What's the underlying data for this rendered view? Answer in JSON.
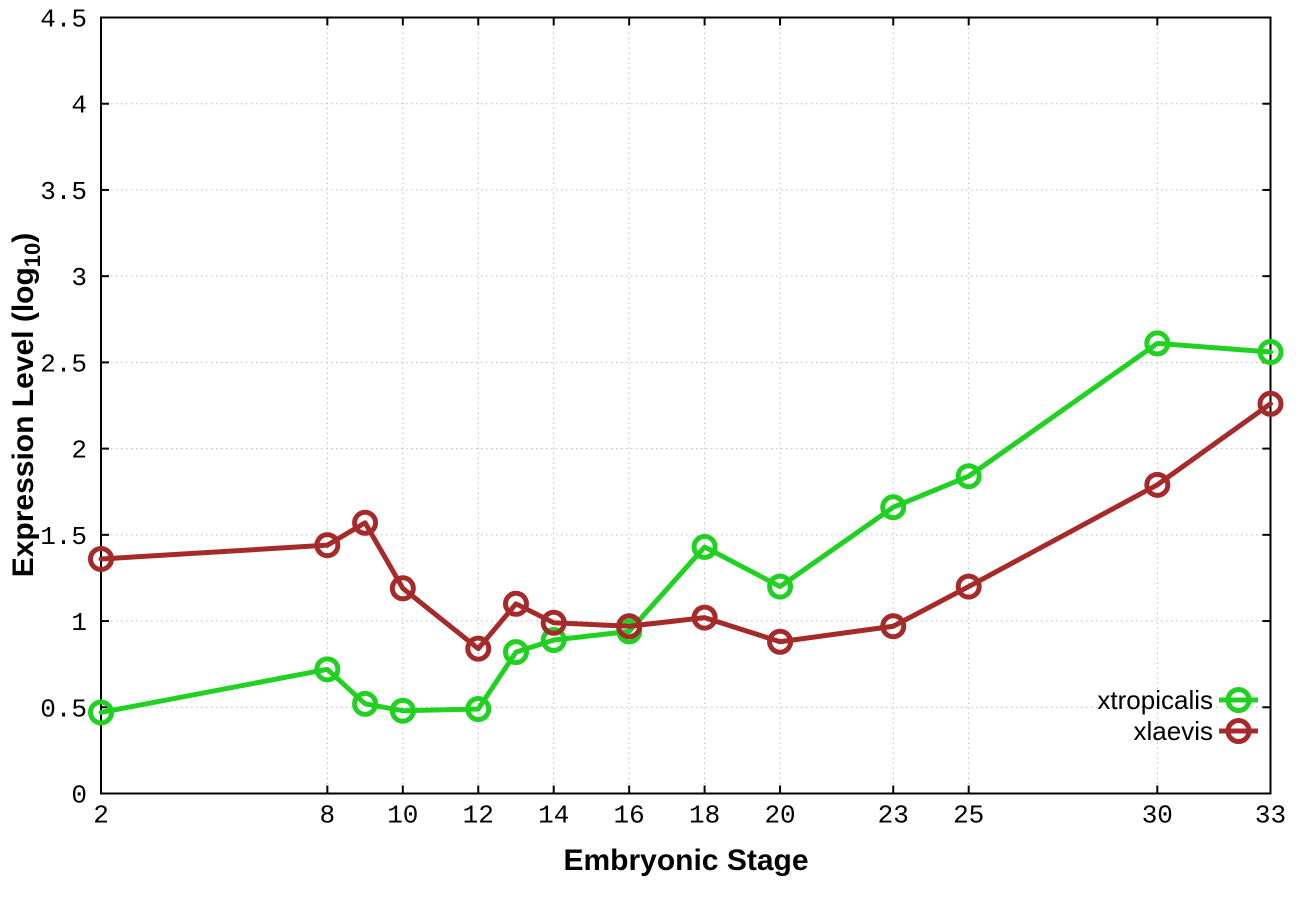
{
  "window": {
    "background": "#ffffff"
  },
  "chart_data": {
    "type": "line",
    "title": "",
    "xlabel": "Embryonic Stage",
    "ylabel": {
      "prefix": "Expression Level (log",
      "subscript": "10",
      "suffix": ")"
    },
    "x": [
      2,
      8,
      9,
      10,
      12,
      13,
      14,
      16,
      18,
      20,
      23,
      25,
      30,
      33
    ],
    "series": [
      {
        "name": "xtropicalis",
        "color": "#21d121",
        "marker": "open-circle",
        "values": [
          0.47,
          0.72,
          0.52,
          0.48,
          0.49,
          0.82,
          0.89,
          0.94,
          1.43,
          1.2,
          1.66,
          1.84,
          2.61,
          2.56
        ]
      },
      {
        "name": "xlaevis",
        "color": "#a52a2a",
        "marker": "open-circle",
        "values": [
          1.36,
          1.44,
          1.57,
          1.19,
          0.84,
          1.1,
          0.99,
          0.97,
          1.02,
          0.88,
          0.97,
          1.2,
          1.79,
          2.26
        ]
      }
    ],
    "xlim": [
      2,
      33
    ],
    "ylim": [
      0,
      4.5
    ],
    "xticks": [
      2,
      8,
      10,
      12,
      14,
      16,
      18,
      20,
      23,
      25,
      30,
      33
    ],
    "ytick_labels": [
      "0",
      "0.5",
      "1",
      "1.5",
      "2",
      "2.5",
      "3",
      "3.5",
      "4",
      "4.5"
    ],
    "grid": "dotted",
    "legend": {
      "position": "inside-bottom-right"
    },
    "colors": {
      "axis": "#000000",
      "grid": "#bdbdbd",
      "text": "#000000",
      "background": "#ffffff"
    }
  }
}
